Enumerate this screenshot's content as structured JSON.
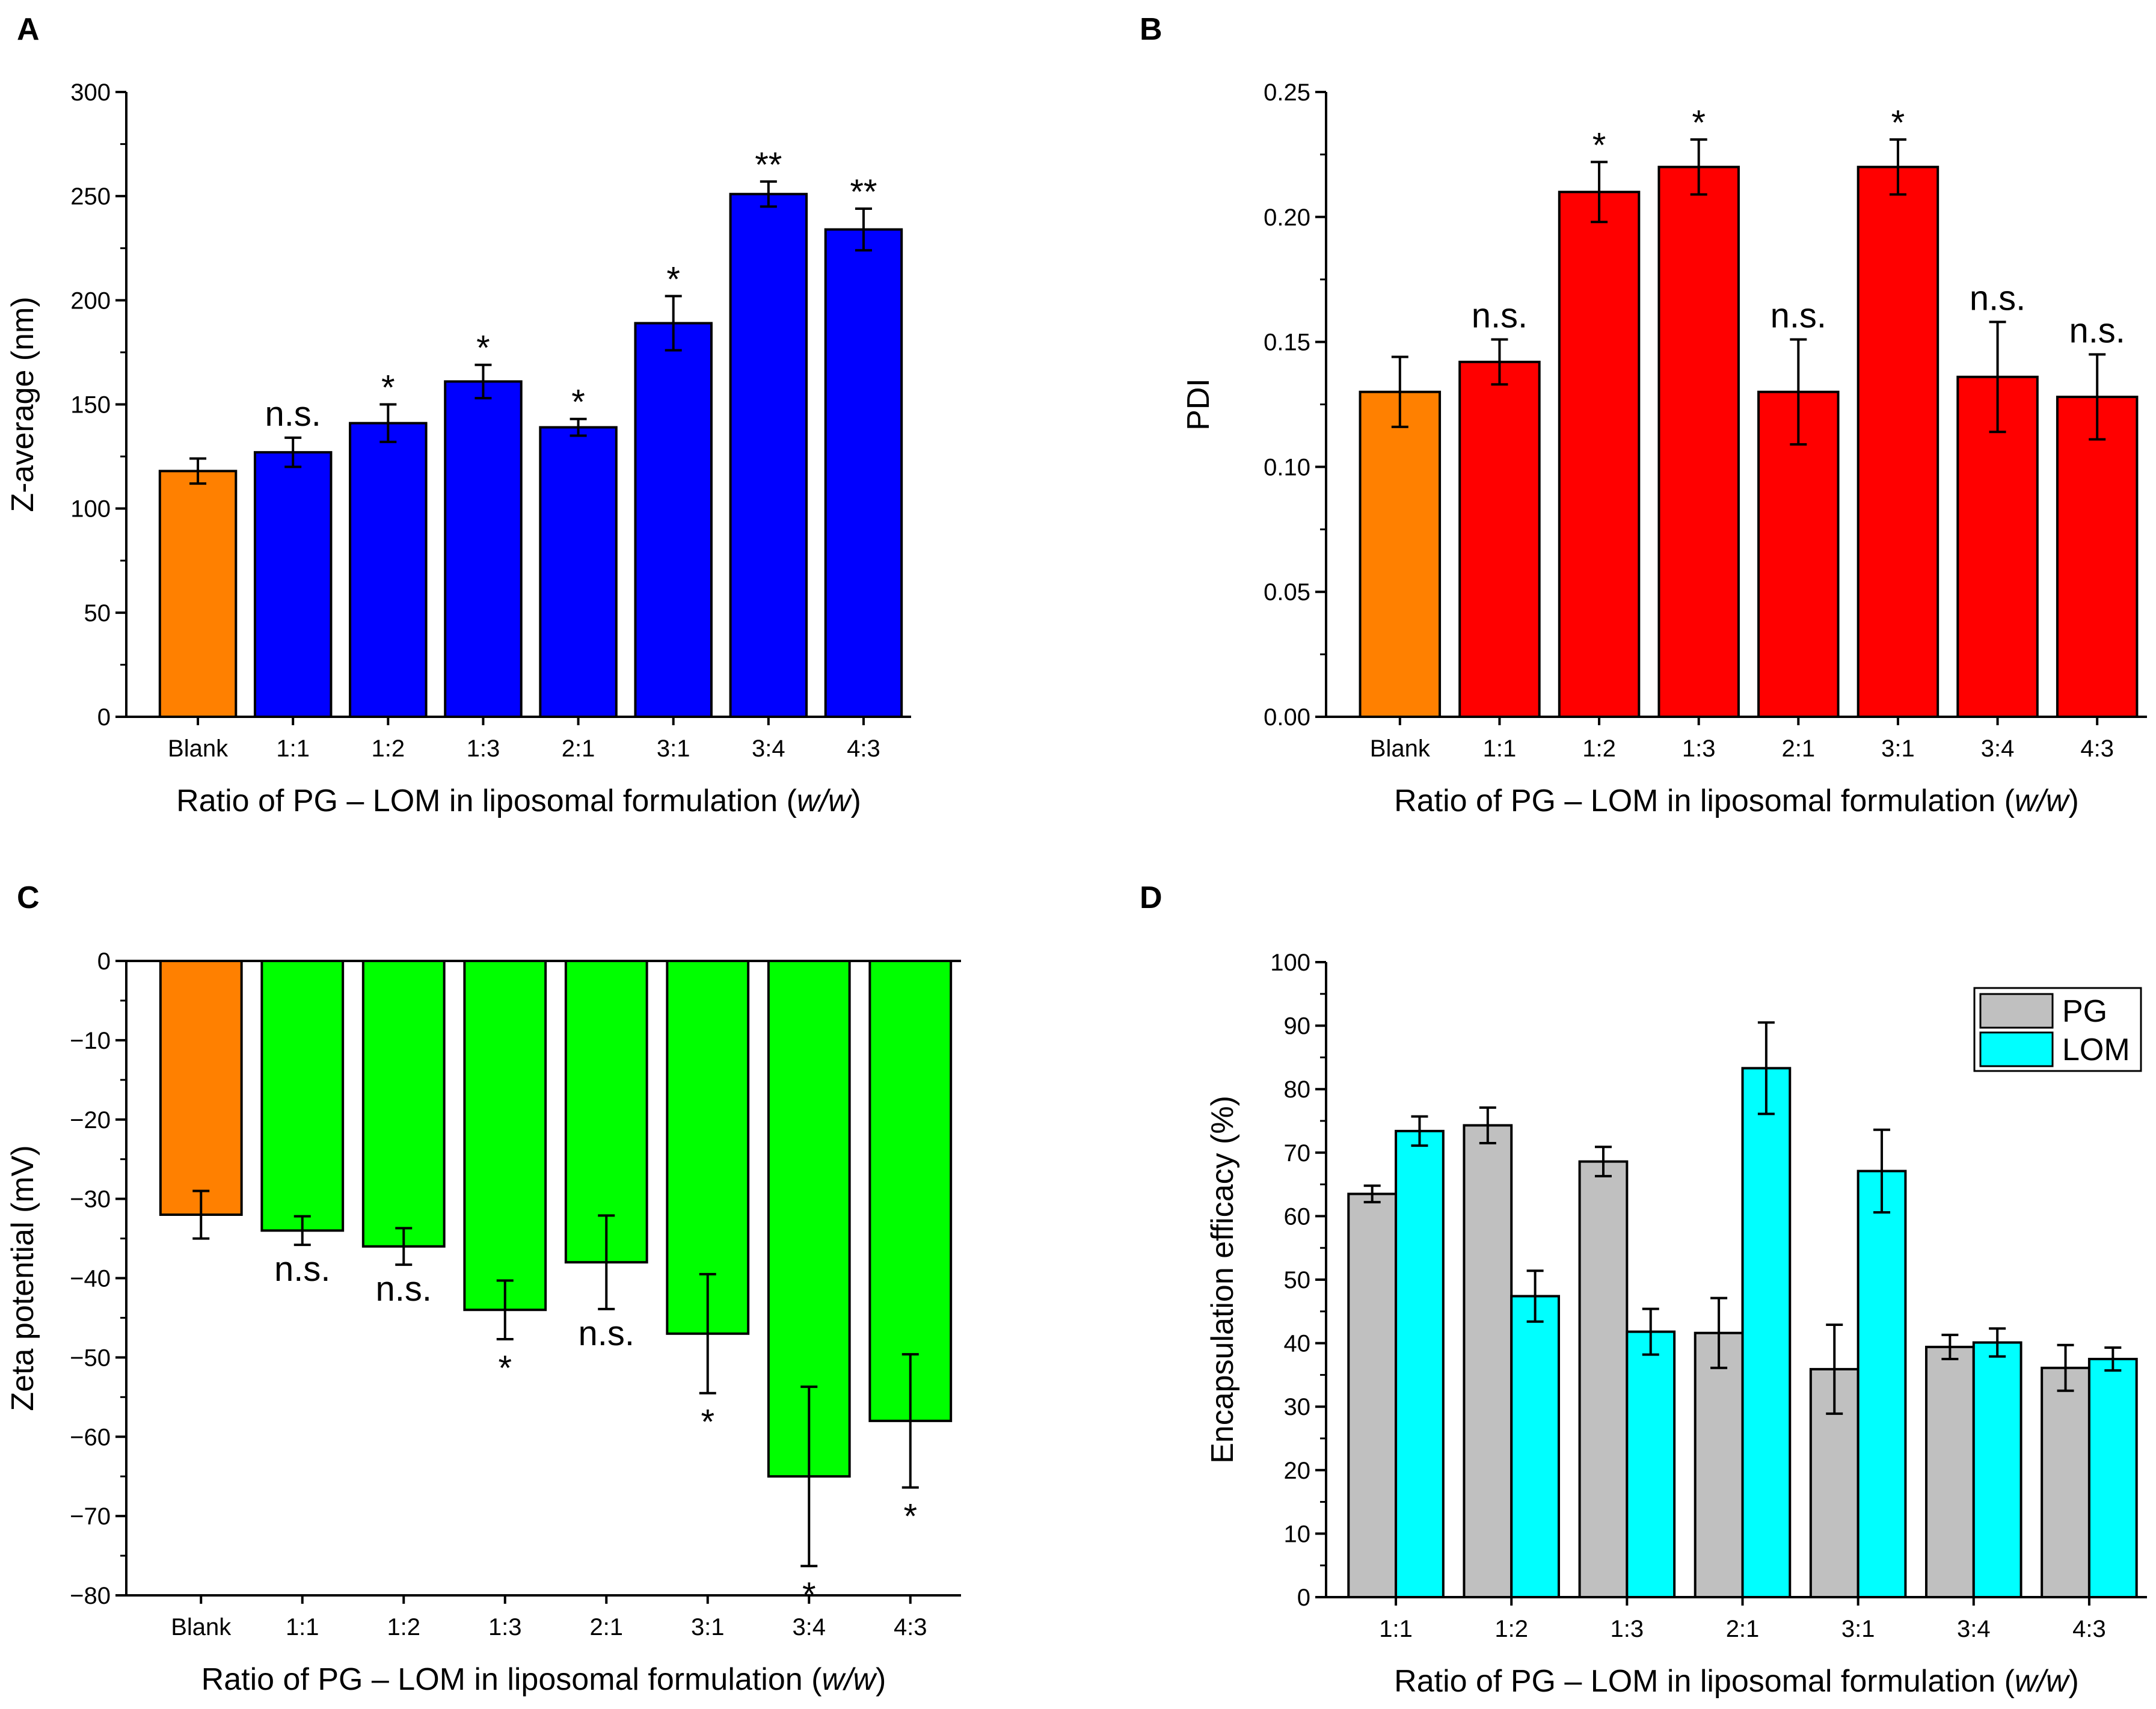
{
  "colors": {
    "blank": "#ff8000",
    "panel_a": "#0000ff",
    "panel_b": "#ff0000",
    "panel_c": "#00ff00",
    "pg": "#c0c0c0",
    "lom": "#00ffff",
    "axis": "#000000",
    "bar_edge": "#000000"
  },
  "chart_data": [
    {
      "panel": "A",
      "type": "bar",
      "categories": [
        "Blank",
        "1:1",
        "1:2",
        "1:3",
        "2:1",
        "3:1",
        "3:4",
        "4:3"
      ],
      "values": [
        118,
        127,
        141,
        161,
        139,
        189,
        251,
        234
      ],
      "errors": [
        6,
        7,
        9,
        8,
        4,
        13,
        6,
        10
      ],
      "annotations": [
        "",
        "n.s.",
        "*",
        "*",
        "*",
        "*",
        "**",
        "**"
      ],
      "xlabel_prefix": "Ratio of PG – LOM in liposomal formulation (",
      "xlabel_italic": "w/w",
      "xlabel_suffix": ")",
      "ylabel": "Z-average (nm)",
      "ylim": [
        0,
        300
      ],
      "yticks": [
        0,
        50,
        100,
        150,
        200,
        250,
        300
      ],
      "ytick_labels": [
        "0",
        "50",
        "100",
        "150",
        "200",
        "250",
        "300"
      ]
    },
    {
      "panel": "B",
      "type": "bar",
      "categories": [
        "Blank",
        "1:1",
        "1:2",
        "1:3",
        "2:1",
        "3:1",
        "3:4",
        "4:3"
      ],
      "values": [
        0.13,
        0.142,
        0.21,
        0.22,
        0.13,
        0.22,
        0.136,
        0.128
      ],
      "errors": [
        0.014,
        0.009,
        0.012,
        0.011,
        0.021,
        0.011,
        0.022,
        0.017
      ],
      "annotations": [
        "",
        "n.s.",
        "*",
        "*",
        "n.s.",
        "*",
        "n.s.",
        "n.s."
      ],
      "xlabel_prefix": "Ratio of PG – LOM in liposomal formulation (",
      "xlabel_italic": "w/w",
      "xlabel_suffix": ")",
      "ylabel": "PDI",
      "ylim": [
        0,
        0.25
      ],
      "yticks": [
        0,
        0.05,
        0.1,
        0.15,
        0.2,
        0.25
      ],
      "ytick_labels": [
        "0.00",
        "0.05",
        "0.10",
        "0.15",
        "0.20",
        "0.25"
      ]
    },
    {
      "panel": "C",
      "type": "bar",
      "categories": [
        "Blank",
        "1:1",
        "1:2",
        "1:3",
        "2:1",
        "3:1",
        "3:4",
        "4:3"
      ],
      "values": [
        -32,
        -34,
        -36,
        -44,
        -38,
        -47,
        -65,
        -58
      ],
      "errors": [
        3,
        1.8,
        2.3,
        3.7,
        5.9,
        7.5,
        11.3,
        8.4
      ],
      "annotations": [
        "",
        "n.s.",
        "n.s.",
        "*",
        "n.s.",
        "*",
        "*",
        "*"
      ],
      "xlabel_prefix": "Ratio of PG – LOM in liposomal formulation (",
      "xlabel_italic": "w/w",
      "xlabel_suffix": ")",
      "ylabel": "Zeta potential (mV)",
      "ylim": [
        -80,
        0
      ],
      "yticks": [
        0,
        -10,
        -20,
        -30,
        -40,
        -50,
        -60,
        -70,
        -80
      ],
      "ytick_labels": [
        "0",
        "−10",
        "−20",
        "−30",
        "−40",
        "−50",
        "−60",
        "−70",
        "−80"
      ]
    },
    {
      "panel": "D",
      "type": "bar",
      "categories": [
        "1:1",
        "1:2",
        "1:3",
        "2:1",
        "3:1",
        "3:4",
        "4:3"
      ],
      "series": [
        {
          "name": "PG",
          "values": [
            63.5,
            74.3,
            68.6,
            41.6,
            35.9,
            39.4,
            36.1
          ],
          "errors": [
            1.3,
            2.8,
            2.3,
            5.5,
            7,
            1.9,
            3.6
          ]
        },
        {
          "name": "LOM",
          "values": [
            73.4,
            47.4,
            41.8,
            83.3,
            67.1,
            40.1,
            37.5
          ],
          "errors": [
            2.3,
            4,
            3.6,
            7.2,
            6.5,
            2.2,
            1.8
          ]
        }
      ],
      "xlabel_prefix": "Ratio of PG – LOM in liposomal formulation (",
      "xlabel_italic": "w/w",
      "xlabel_suffix": ")",
      "ylabel": "Encapsulation efficacy (%)",
      "ylim": [
        0,
        100
      ],
      "yticks": [
        0,
        10,
        20,
        30,
        40,
        50,
        60,
        70,
        80,
        90,
        100
      ],
      "ytick_labels": [
        "0",
        "10",
        "20",
        "30",
        "40",
        "50",
        "60",
        "70",
        "80",
        "90",
        "100"
      ],
      "legend_position": "top-right"
    }
  ]
}
